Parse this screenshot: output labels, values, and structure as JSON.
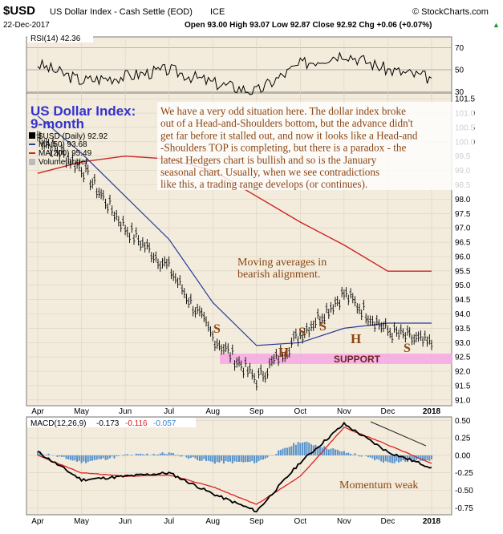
{
  "header": {
    "symbol": "$USD",
    "name": "US Dollar Index - Cash Settle (EOD)",
    "exchange": "ICE",
    "source": "© StockCharts.com",
    "date": "22-Dec-2017",
    "ohlc": "Open 93.00  High 93.07  Low 92.87  Close 92.92  Chg +0.06 (+0.07%)",
    "ohlc_arrow": "▲"
  },
  "colors": {
    "price_bars": "#000000",
    "ma50": "#2a3b9a",
    "ma200": "#cc2222",
    "panel_bg": "#f3ecdc",
    "support_band": "#f4a8e4",
    "annotation": "#8b4513",
    "title": "#3333cc",
    "macd_line": "#000000",
    "signal_line": "#dd2222",
    "histogram": "#3b82c8"
  },
  "rsi": {
    "label": "RSI(14) 42.36",
    "levels": [
      "70",
      "50",
      "30"
    ]
  },
  "main": {
    "title_line1": "US Dollar Index:",
    "title_line2": "9-month",
    "legend": [
      "$USD (Daily) 92.92",
      "MA(50) 93.68",
      "MA(200) 95.49",
      "Volume undef"
    ],
    "commentary": [
      "We have a very odd situation here. The dollar index broke",
      "out of a Head-and-Shoulders bottom, but the advance didn't",
      "get far before it stalled out, and now it looks like a Head-and",
      "-Shoulders TOP is completing, but there is a paradox - the",
      "latest Hedgers chart is bullish and so is the January",
      "seasonal chart. Usually, when we see contradictions",
      "like this, a trading range develops (or continues)."
    ],
    "ma_note": [
      "Moving averages in",
      "bearish alignment."
    ],
    "support_label": "SUPPORT",
    "pattern_letters": [
      "S",
      "H",
      "S",
      "S",
      "H",
      "S"
    ],
    "price_ticks": [
      "101.5",
      "101.0",
      "100.5",
      "100.0",
      "99.5",
      "99.0",
      "98.5",
      "98.0",
      "97.5",
      "97.0",
      "96.5",
      "96.0",
      "95.5",
      "95.0",
      "94.5",
      "94.0",
      "93.5",
      "93.0",
      "92.5",
      "92.0",
      "91.5",
      "91.0"
    ]
  },
  "macd": {
    "label": "MACD(12,26,9)",
    "values": [
      "-0.173",
      "-0.116",
      "-0.057"
    ],
    "ticks": [
      "0.50",
      "0.25",
      "0.00",
      "-0.25",
      "-0.50",
      "-0.75"
    ],
    "note": "Momentum weak"
  },
  "x_axis": {
    "months": [
      "Apr",
      "May",
      "Jun",
      "Jul",
      "Aug",
      "Sep",
      "Oct",
      "Nov",
      "Dec",
      "2018"
    ]
  },
  "chart_data": {
    "type": "line",
    "title": "$USD US Dollar Index - Cash Settle (EOD)",
    "x": [
      "Apr",
      "May",
      "Jun",
      "Jul",
      "Aug",
      "Sep",
      "Oct",
      "Nov",
      "Dec",
      "2018"
    ],
    "ylim": [
      90.8,
      101.7
    ],
    "series": [
      {
        "name": "$USD (Daily)",
        "values": [
          100.2,
          99.1,
          97.0,
          95.6,
          93.2,
          91.7,
          93.3,
          94.7,
          93.4,
          92.92
        ]
      },
      {
        "name": "MA(50)",
        "values": [
          100.9,
          99.6,
          98.1,
          96.6,
          94.4,
          92.9,
          93.0,
          93.5,
          93.68,
          93.68
        ]
      },
      {
        "name": "MA(200)",
        "values": [
          98.9,
          99.3,
          99.5,
          99.4,
          99.0,
          98.1,
          97.2,
          96.4,
          95.49,
          95.49
        ]
      }
    ],
    "rsi_ylim": [
      20,
      80
    ],
    "rsi_values": [
      55,
      40,
      44,
      50,
      38,
      30,
      55,
      65,
      50,
      42.36
    ],
    "macd_ylim": [
      -0.85,
      0.55
    ],
    "macd": {
      "macd_line": [
        0.05,
        -0.35,
        -0.3,
        -0.25,
        -0.55,
        -0.8,
        -0.1,
        0.45,
        0.05,
        -0.173
      ],
      "signal_line": [
        0.0,
        -0.25,
        -0.3,
        -0.28,
        -0.45,
        -0.7,
        -0.3,
        0.4,
        0.15,
        -0.116
      ]
    }
  }
}
